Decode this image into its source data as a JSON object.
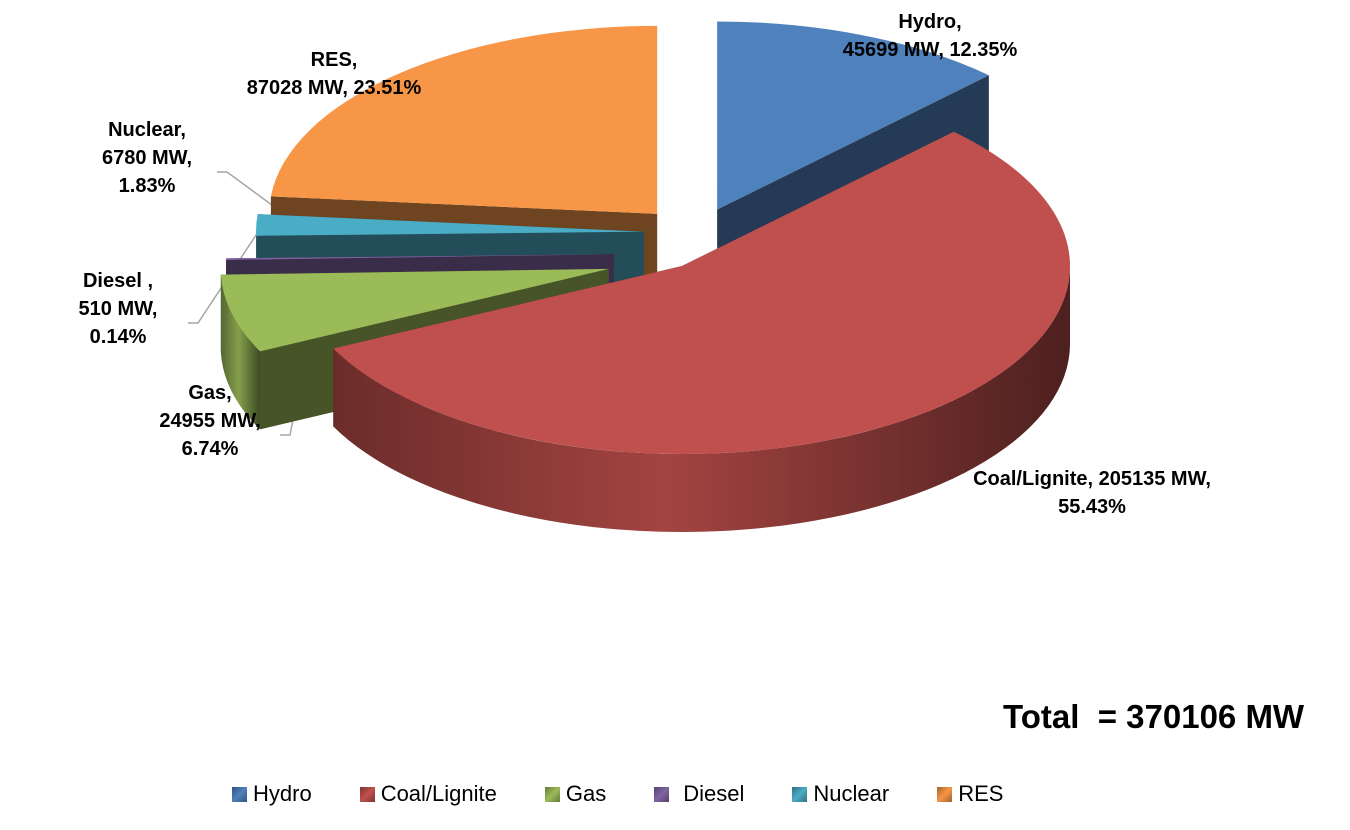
{
  "chart_data": {
    "type": "pie",
    "style": "3d-exploded",
    "unit": "MW",
    "slices": [
      {
        "name": "Hydro",
        "value": 45699,
        "percent": 12.35,
        "color": "#4F81BD",
        "label_lines": [
          "Hydro,",
          "45699 MW, 12.35%"
        ]
      },
      {
        "name": "Coal/Lignite",
        "value": 205135,
        "percent": 55.43,
        "color": "#C0504D",
        "label_lines": [
          "Coal/Lignite, 205135 MW,",
          "55.43%"
        ]
      },
      {
        "name": "Gas",
        "value": 24955,
        "percent": 6.74,
        "color": "#9BBB59",
        "label_lines": [
          "Gas,",
          "24955 MW,",
          "6.74%"
        ]
      },
      {
        "name": "Diesel",
        "value": 510,
        "percent": 0.14,
        "color": "#8064A2",
        "label_lines": [
          "Diesel ,",
          "510 MW,",
          "0.14%"
        ]
      },
      {
        "name": "Nuclear",
        "value": 6780,
        "percent": 1.83,
        "color": "#4BACC6",
        "label_lines": [
          "Nuclear,",
          "6780 MW,",
          "1.83%"
        ]
      },
      {
        "name": "RES",
        "value": 87028,
        "percent": 23.51,
        "color": "#F79646",
        "label_lines": [
          "RES,",
          "87028 MW, 23.51%"
        ]
      }
    ],
    "legend_position": "bottom"
  },
  "total_text": "Total  = 370106 MW",
  "legend": [
    {
      "label": "Hydro",
      "color": "#4F81BD"
    },
    {
      "label": "Coal/Lignite",
      "color": "#C0504D"
    },
    {
      "label": "Gas",
      "color": "#9BBB59"
    },
    {
      "label": "Diesel",
      "color": "#8064A2"
    },
    {
      "label": "Nuclear",
      "color": "#4BACC6"
    },
    {
      "label": "RES",
      "color": "#F79646"
    }
  ]
}
